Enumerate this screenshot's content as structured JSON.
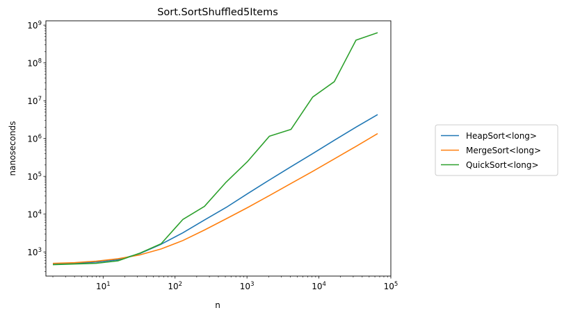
{
  "chart_data": {
    "type": "line",
    "title": "Sort.SortShuffled5Items",
    "xlabel": "n",
    "ylabel": "nanoseconds",
    "xscale": "log",
    "yscale": "log",
    "xlim": [
      1.6,
      100000
    ],
    "ylim": [
      230,
      1300000000
    ],
    "xticks": [
      {
        "value": 10,
        "base": "10",
        "exp": "1"
      },
      {
        "value": 100,
        "base": "10",
        "exp": "2"
      },
      {
        "value": 1000,
        "base": "10",
        "exp": "3"
      },
      {
        "value": 10000,
        "base": "10",
        "exp": "4"
      },
      {
        "value": 100000,
        "base": "10",
        "exp": "5"
      }
    ],
    "yticks": [
      {
        "value": 1000,
        "base": "10",
        "exp": "3"
      },
      {
        "value": 10000,
        "base": "10",
        "exp": "4"
      },
      {
        "value": 100000,
        "base": "10",
        "exp": "5"
      },
      {
        "value": 1000000,
        "base": "10",
        "exp": "6"
      },
      {
        "value": 10000000,
        "base": "10",
        "exp": "7"
      },
      {
        "value": 100000000,
        "base": "10",
        "exp": "8"
      },
      {
        "value": 1000000000,
        "base": "10",
        "exp": "9"
      }
    ],
    "x": [
      2,
      4,
      8,
      16,
      32,
      64,
      128,
      256,
      512,
      1024,
      2048,
      4096,
      8192,
      16384,
      32768,
      65536
    ],
    "series": [
      {
        "name": "HeapSort<long>",
        "color": "#1f77b4",
        "values": [
          470,
          500,
          540,
          620,
          900,
          1600,
          3200,
          7000,
          15000,
          35000,
          80000,
          180000,
          400000,
          900000,
          2000000,
          4300000
        ]
      },
      {
        "name": "MergeSort<long>",
        "color": "#ff7f0e",
        "values": [
          500,
          520,
          570,
          660,
          830,
          1200,
          2000,
          3800,
          7500,
          15000,
          31000,
          65000,
          135000,
          290000,
          620000,
          1350000
        ]
      },
      {
        "name": "QuickSort<long>",
        "color": "#2ca02c",
        "values": [
          460,
          480,
          500,
          580,
          920,
          1650,
          7200,
          16000,
          70000,
          250000,
          1150000,
          1750000,
          12500000,
          32000000,
          400000000,
          630000000
        ]
      }
    ],
    "grid": false,
    "legend_position": "right"
  }
}
